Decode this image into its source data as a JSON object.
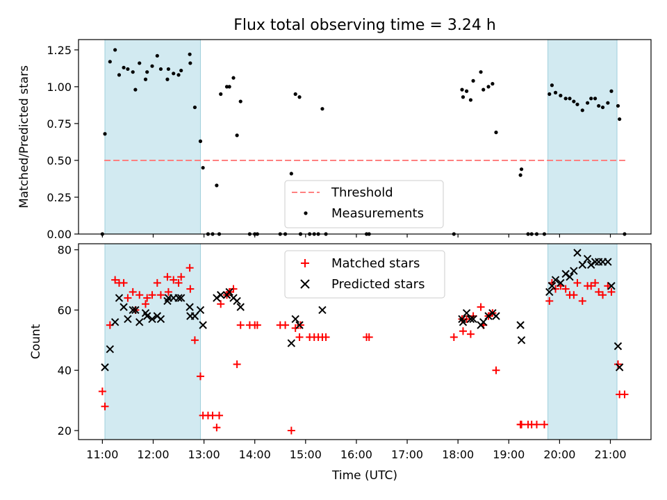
{
  "chart_data": {
    "type": "scatter",
    "title": "Flux total observing time = 3.24 h",
    "xlabel": "Time (UTC)",
    "x_tick_labels": [
      "11:00",
      "12:00",
      "13:00",
      "14:00",
      "15:00",
      "16:00",
      "17:00",
      "18:00",
      "19:00",
      "20:00",
      "21:00"
    ],
    "x_range_hours": [
      10.53,
      21.8
    ],
    "shaded_intervals_hours": [
      [
        11.05,
        12.93
      ],
      [
        19.77,
        21.13
      ]
    ],
    "shade_color": "#add8e6",
    "top_panel": {
      "ylabel": "Matched/Predicted stars",
      "ylim": [
        0,
        1.32
      ],
      "y_tick_labels": [
        "0.00",
        "0.25",
        "0.50",
        "0.75",
        "1.00",
        "1.25"
      ],
      "threshold": {
        "name": "Threshold",
        "value": 0.5,
        "color": "#ff8080"
      },
      "legend": [
        "Threshold",
        "Measurements"
      ],
      "measurements": {
        "name": "Measurements",
        "color": "#000000",
        "points": [
          [
            11.0,
            0.0
          ],
          [
            11.05,
            0.68
          ],
          [
            11.15,
            1.17
          ],
          [
            11.25,
            1.25
          ],
          [
            11.33,
            1.08
          ],
          [
            11.42,
            1.13
          ],
          [
            11.5,
            1.12
          ],
          [
            11.6,
            1.1
          ],
          [
            11.65,
            0.98
          ],
          [
            11.73,
            1.16
          ],
          [
            11.85,
            1.05
          ],
          [
            11.88,
            1.1
          ],
          [
            11.98,
            1.14
          ],
          [
            12.08,
            1.21
          ],
          [
            12.15,
            1.12
          ],
          [
            12.28,
            1.05
          ],
          [
            12.3,
            1.12
          ],
          [
            12.4,
            1.09
          ],
          [
            12.5,
            1.08
          ],
          [
            12.55,
            1.11
          ],
          [
            12.72,
            1.22
          ],
          [
            12.73,
            1.16
          ],
          [
            12.82,
            0.86
          ],
          [
            12.93,
            0.63
          ],
          [
            12.98,
            0.45
          ],
          [
            13.08,
            0.0
          ],
          [
            13.17,
            0.0
          ],
          [
            13.25,
            0.33
          ],
          [
            13.3,
            0.0
          ],
          [
            13.33,
            0.95
          ],
          [
            13.45,
            1.0
          ],
          [
            13.5,
            1.0
          ],
          [
            13.58,
            1.06
          ],
          [
            13.65,
            0.67
          ],
          [
            13.72,
            0.9
          ],
          [
            13.9,
            0.0
          ],
          [
            14.0,
            0.0
          ],
          [
            14.05,
            0.0
          ],
          [
            14.5,
            0.0
          ],
          [
            14.6,
            0.0
          ],
          [
            14.72,
            0.41
          ],
          [
            14.8,
            0.95
          ],
          [
            14.88,
            0.93
          ],
          [
            14.9,
            0.0
          ],
          [
            15.08,
            0.0
          ],
          [
            15.17,
            0.0
          ],
          [
            15.25,
            0.0
          ],
          [
            15.33,
            0.85
          ],
          [
            15.4,
            0.0
          ],
          [
            16.2,
            0.0
          ],
          [
            16.25,
            0.0
          ],
          [
            17.92,
            0.0
          ],
          [
            18.08,
            0.98
          ],
          [
            18.1,
            0.93
          ],
          [
            18.17,
            0.97
          ],
          [
            18.25,
            0.91
          ],
          [
            18.3,
            1.04
          ],
          [
            18.45,
            1.1
          ],
          [
            18.5,
            0.98
          ],
          [
            18.6,
            1.0
          ],
          [
            18.68,
            1.02
          ],
          [
            18.75,
            0.69
          ],
          [
            19.23,
            0.4
          ],
          [
            19.25,
            0.44
          ],
          [
            19.38,
            0.0
          ],
          [
            19.45,
            0.0
          ],
          [
            19.55,
            0.0
          ],
          [
            19.7,
            0.0
          ],
          [
            19.8,
            0.95
          ],
          [
            19.85,
            1.01
          ],
          [
            19.92,
            0.96
          ],
          [
            20.02,
            0.94
          ],
          [
            20.12,
            0.92
          ],
          [
            20.2,
            0.92
          ],
          [
            20.28,
            0.9
          ],
          [
            20.35,
            0.88
          ],
          [
            20.45,
            0.84
          ],
          [
            20.55,
            0.89
          ],
          [
            20.62,
            0.92
          ],
          [
            20.7,
            0.92
          ],
          [
            20.77,
            0.87
          ],
          [
            20.85,
            0.86
          ],
          [
            20.95,
            0.89
          ],
          [
            21.02,
            0.97
          ],
          [
            21.15,
            0.87
          ],
          [
            21.18,
            0.78
          ],
          [
            21.28,
            0.0
          ]
        ]
      }
    },
    "bottom_panel": {
      "ylabel": "Count",
      "ylim": [
        17,
        82
      ],
      "y_tick_labels": [
        "20",
        "40",
        "60",
        "80"
      ],
      "legend": [
        "Matched stars",
        "Predicted stars"
      ],
      "series": [
        {
          "name": "Matched stars",
          "marker": "+",
          "color": "#ff0000",
          "points": [
            [
              11.0,
              33
            ],
            [
              11.05,
              28
            ],
            [
              11.15,
              55
            ],
            [
              11.25,
              70
            ],
            [
              11.33,
              69
            ],
            [
              11.42,
              69
            ],
            [
              11.5,
              64
            ],
            [
              11.6,
              66
            ],
            [
              11.65,
              60
            ],
            [
              11.73,
              65
            ],
            [
              11.85,
              62
            ],
            [
              11.88,
              64
            ],
            [
              11.98,
              65
            ],
            [
              12.08,
              69
            ],
            [
              12.15,
              65
            ],
            [
              12.28,
              71
            ],
            [
              12.3,
              66
            ],
            [
              12.4,
              70
            ],
            [
              12.5,
              69
            ],
            [
              12.55,
              71
            ],
            [
              12.72,
              74
            ],
            [
              12.73,
              67
            ],
            [
              12.82,
              50
            ],
            [
              12.93,
              38
            ],
            [
              12.98,
              25
            ],
            [
              13.08,
              25
            ],
            [
              13.17,
              25
            ],
            [
              13.25,
              21
            ],
            [
              13.3,
              25
            ],
            [
              13.33,
              62
            ],
            [
              13.45,
              65
            ],
            [
              13.5,
              66
            ],
            [
              13.58,
              67
            ],
            [
              13.65,
              42
            ],
            [
              13.72,
              55
            ],
            [
              13.9,
              55
            ],
            [
              14.0,
              55
            ],
            [
              14.05,
              55
            ],
            [
              14.5,
              55
            ],
            [
              14.6,
              55
            ],
            [
              14.72,
              20
            ],
            [
              14.8,
              54
            ],
            [
              14.88,
              51
            ],
            [
              14.9,
              55
            ],
            [
              15.08,
              51
            ],
            [
              15.17,
              51
            ],
            [
              15.25,
              51
            ],
            [
              15.33,
              51
            ],
            [
              15.4,
              51
            ],
            [
              16.2,
              51
            ],
            [
              16.25,
              51
            ],
            [
              17.92,
              51
            ],
            [
              18.08,
              57
            ],
            [
              18.1,
              53
            ],
            [
              18.17,
              57
            ],
            [
              18.25,
              52
            ],
            [
              18.3,
              58
            ],
            [
              18.45,
              61
            ],
            [
              18.5,
              55
            ],
            [
              18.6,
              58
            ],
            [
              18.68,
              59
            ],
            [
              18.75,
              40
            ],
            [
              19.23,
              22
            ],
            [
              19.25,
              22
            ],
            [
              19.38,
              22
            ],
            [
              19.45,
              22
            ],
            [
              19.55,
              22
            ],
            [
              19.7,
              22
            ],
            [
              19.8,
              63
            ],
            [
              19.85,
              69
            ],
            [
              19.92,
              67
            ],
            [
              20.02,
              68
            ],
            [
              20.12,
              67
            ],
            [
              20.2,
              65
            ],
            [
              20.28,
              65
            ],
            [
              20.35,
              69
            ],
            [
              20.45,
              63
            ],
            [
              20.55,
              68
            ],
            [
              20.62,
              68
            ],
            [
              20.7,
              69
            ],
            [
              20.77,
              66
            ],
            [
              20.85,
              65
            ],
            [
              20.95,
              68
            ],
            [
              21.02,
              66
            ],
            [
              21.15,
              42
            ],
            [
              21.18,
              32
            ],
            [
              21.28,
              32
            ]
          ]
        },
        {
          "name": "Predicted stars",
          "marker": "x",
          "color": "#000000",
          "points": [
            [
              11.05,
              41
            ],
            [
              11.15,
              47
            ],
            [
              11.25,
              56
            ],
            [
              11.33,
              64
            ],
            [
              11.42,
              61
            ],
            [
              11.5,
              57
            ],
            [
              11.6,
              60
            ],
            [
              11.65,
              60
            ],
            [
              11.73,
              56
            ],
            [
              11.85,
              59
            ],
            [
              11.88,
              58
            ],
            [
              11.98,
              57
            ],
            [
              12.08,
              58
            ],
            [
              12.15,
              57
            ],
            [
              12.28,
              63
            ],
            [
              12.3,
              64
            ],
            [
              12.4,
              64
            ],
            [
              12.5,
              64
            ],
            [
              12.55,
              64
            ],
            [
              12.72,
              61
            ],
            [
              12.73,
              58
            ],
            [
              12.82,
              58
            ],
            [
              12.93,
              60
            ],
            [
              12.98,
              55
            ],
            [
              13.25,
              64
            ],
            [
              13.33,
              65
            ],
            [
              13.45,
              65
            ],
            [
              13.5,
              66
            ],
            [
              13.58,
              64
            ],
            [
              13.65,
              63
            ],
            [
              13.72,
              61
            ],
            [
              14.72,
              49
            ],
            [
              14.8,
              57
            ],
            [
              14.88,
              55
            ],
            [
              15.33,
              60
            ],
            [
              18.08,
              57
            ],
            [
              18.1,
              56
            ],
            [
              18.17,
              59
            ],
            [
              18.25,
              57
            ],
            [
              18.3,
              57
            ],
            [
              18.45,
              55
            ],
            [
              18.5,
              56
            ],
            [
              18.6,
              58
            ],
            [
              18.68,
              59
            ],
            [
              18.75,
              58
            ],
            [
              19.23,
              55
            ],
            [
              19.25,
              50
            ],
            [
              19.8,
              66
            ],
            [
              19.85,
              68
            ],
            [
              19.92,
              70
            ],
            [
              20.02,
              69
            ],
            [
              20.12,
              72
            ],
            [
              20.2,
              71
            ],
            [
              20.28,
              73
            ],
            [
              20.35,
              79
            ],
            [
              20.45,
              75
            ],
            [
              20.55,
              77
            ],
            [
              20.62,
              75
            ],
            [
              20.7,
              76
            ],
            [
              20.77,
              76
            ],
            [
              20.85,
              76
            ],
            [
              20.95,
              76
            ],
            [
              21.02,
              68
            ],
            [
              21.15,
              48
            ],
            [
              21.18,
              41
            ]
          ]
        }
      ]
    }
  }
}
